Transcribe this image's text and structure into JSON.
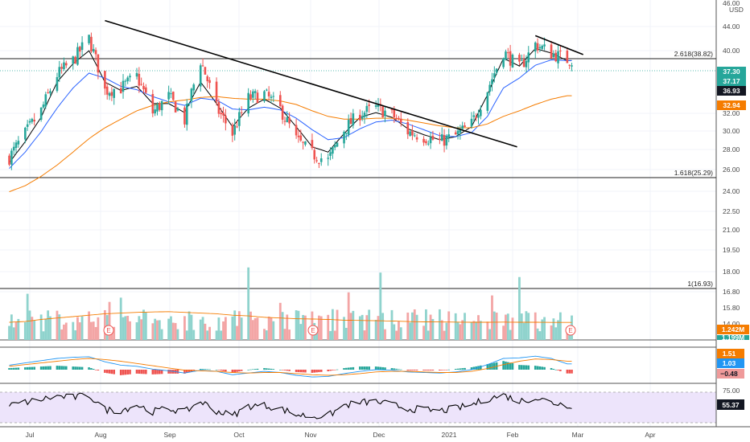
{
  "currency": "USD",
  "x_tick_labels": [
    "Jul",
    "Aug",
    "Sep",
    "Oct",
    "Nov",
    "Dec",
    "2021",
    "Feb",
    "Mar",
    "Apr"
  ],
  "price_axis_labels": [
    "46.00",
    "44.00",
    "40.00",
    "32.00",
    "30.00",
    "28.00",
    "26.00",
    "24.00",
    "22.50",
    "21.00",
    "19.50",
    "18.00",
    "16.80",
    "15.80",
    "14.00"
  ],
  "fib_levels": [
    {
      "label": "2.618(38.82)",
      "value": 38.82
    },
    {
      "label": "1.618(25.29)",
      "value": 25.29
    },
    {
      "label": "1(16.93)",
      "value": 16.93
    }
  ],
  "price_tags": [
    {
      "text": "37.30",
      "color": "#26a69a"
    },
    {
      "text": "37.17",
      "color": "#26a69a"
    },
    {
      "text": "36.93",
      "color": "#131722"
    },
    {
      "text": "32.94",
      "color": "#f57c00"
    }
  ],
  "volume_tags": [
    {
      "text": "1.242M",
      "color": "#f57c00"
    },
    {
      "text": "1.199M",
      "color": "#26a69a"
    }
  ],
  "macd_tags": [
    {
      "text": "1.51",
      "color": "#f57c00"
    },
    {
      "text": "1.03",
      "color": "#2196f3"
    },
    {
      "text": "−0.48",
      "color": "#ffffff"
    }
  ],
  "rsi_axis_labels": [
    "75.00"
  ],
  "rsi_tag": {
    "text": "55.37",
    "color": "#131722"
  },
  "earnings_marker": "E",
  "chart_data": {
    "type": "candlestick",
    "x": [
      "2020-06-22",
      "2020-06-29",
      "2020-07-06",
      "2020-07-13",
      "2020-07-20",
      "2020-07-27",
      "2020-08-03",
      "2020-08-10",
      "2020-08-17",
      "2020-08-24",
      "2020-08-31",
      "2020-09-07",
      "2020-09-14",
      "2020-09-21",
      "2020-09-28",
      "2020-10-05",
      "2020-10-12",
      "2020-10-19",
      "2020-10-26",
      "2020-11-02",
      "2020-11-09",
      "2020-11-16",
      "2020-11-23",
      "2020-11-30",
      "2020-12-07",
      "2020-12-14",
      "2020-12-21",
      "2020-12-28",
      "2021-01-04",
      "2021-01-11",
      "2021-01-18",
      "2021-01-25",
      "2021-02-01",
      "2021-02-08",
      "2021-02-15",
      "2021-02-22"
    ],
    "close": [
      26.5,
      28.8,
      31.2,
      35.4,
      37.2,
      40.2,
      33.5,
      33.8,
      35.2,
      31.0,
      32.8,
      30.2,
      37.2,
      31.5,
      28.8,
      32.6,
      33.1,
      31.4,
      28.2,
      26.8,
      26.2,
      29.2,
      30.9,
      31.5,
      30.8,
      29.0,
      28.5,
      28.0,
      28.6,
      29.8,
      33.6,
      38.4,
      36.2,
      39.4,
      38.2,
      37.3
    ],
    "trendlines": [
      {
        "from": [
          "2020-08-03",
          42.8
        ],
        "to": [
          "2021-01-31",
          27.5
        ]
      },
      {
        "from": [
          "2021-02-08",
          40.6
        ],
        "to": [
          "2021-03-01",
          38.0
        ]
      }
    ],
    "moving_averages": [
      {
        "color": "#000000",
        "values": [
          26.0,
          28.0,
          30.5,
          34.5,
          36.8,
          38.5,
          34.5,
          33.5,
          34.0,
          32.0,
          32.0,
          31.0,
          34.5,
          32.0,
          29.5,
          31.5,
          32.5,
          31.5,
          29.5,
          27.5,
          27.0,
          28.8,
          30.5,
          31.0,
          30.5,
          29.3,
          28.7,
          28.2,
          28.5,
          29.5,
          33.0,
          37.5,
          36.5,
          38.8,
          38.2,
          37.2
        ]
      },
      {
        "color": "#2962ff",
        "values": [
          25.5,
          27.0,
          29.0,
          31.5,
          33.8,
          35.6,
          35.0,
          34.0,
          33.6,
          32.8,
          32.2,
          31.8,
          32.6,
          32.4,
          31.4,
          31.3,
          31.6,
          31.3,
          30.4,
          29.2,
          28.2,
          28.4,
          29.3,
          30.0,
          30.2,
          29.8,
          29.2,
          28.6,
          28.5,
          28.9,
          30.6,
          33.8,
          35.0,
          36.6,
          37.3,
          37.2
        ]
      },
      {
        "color": "#f57c00",
        "values": [
          23.5,
          24.0,
          24.8,
          25.8,
          27.0,
          28.3,
          29.4,
          30.3,
          31.2,
          31.8,
          32.2,
          32.4,
          32.7,
          32.8,
          32.6,
          32.5,
          32.5,
          32.3,
          31.9,
          31.2,
          30.6,
          30.3,
          30.3,
          30.4,
          30.4,
          30.2,
          29.9,
          29.6,
          29.4,
          29.4,
          29.8,
          30.6,
          31.2,
          31.9,
          32.5,
          32.9
        ]
      }
    ],
    "volume_ma": [
      1.25,
      1.3,
      1.45,
      1.55,
      1.65,
      1.75,
      1.85,
      1.9,
      1.95,
      1.98,
      2.0,
      1.95,
      1.9,
      1.85,
      1.75,
      1.7,
      1.6,
      1.55,
      1.5,
      1.48,
      1.45,
      1.4,
      1.38,
      1.36,
      1.34,
      1.3,
      1.28,
      1.27,
      1.26,
      1.25,
      1.25,
      1.26,
      1.25,
      1.25,
      1.24,
      1.24
    ],
    "macd_line": [
      0.8,
      1.2,
      1.6,
      2.0,
      2.2,
      2.3,
      1.4,
      0.8,
      0.6,
      0.1,
      -0.2,
      -0.6,
      -0.1,
      -0.3,
      -0.9,
      -0.6,
      -0.3,
      -0.5,
      -1.0,
      -1.3,
      -1.2,
      -0.7,
      -0.3,
      0.0,
      -0.1,
      -0.4,
      -0.5,
      -0.6,
      -0.4,
      0.0,
      0.9,
      2.0,
      2.1,
      2.4,
      2.0,
      1.03
    ],
    "macd_signal": [
      0.6,
      0.9,
      1.2,
      1.5,
      1.8,
      2.0,
      1.8,
      1.5,
      1.1,
      0.7,
      0.3,
      -0.1,
      -0.2,
      -0.3,
      -0.5,
      -0.6,
      -0.5,
      -0.5,
      -0.7,
      -0.9,
      -1.0,
      -0.9,
      -0.7,
      -0.4,
      -0.3,
      -0.3,
      -0.4,
      -0.5,
      -0.5,
      -0.3,
      0.2,
      0.9,
      1.5,
      1.9,
      1.8,
      1.51
    ],
    "rsi": [
      55,
      60,
      65,
      70,
      68,
      72,
      48,
      47,
      56,
      45,
      50,
      44,
      62,
      46,
      38,
      54,
      55,
      50,
      40,
      37,
      38,
      55,
      60,
      61,
      56,
      50,
      48,
      46,
      50,
      56,
      66,
      72,
      62,
      68,
      60,
      55.37
    ],
    "y_axis": {
      "price_min": 22.0,
      "price_max": 46.0,
      "rsi_min": 20,
      "rsi_max": 90
    },
    "grid": true
  }
}
